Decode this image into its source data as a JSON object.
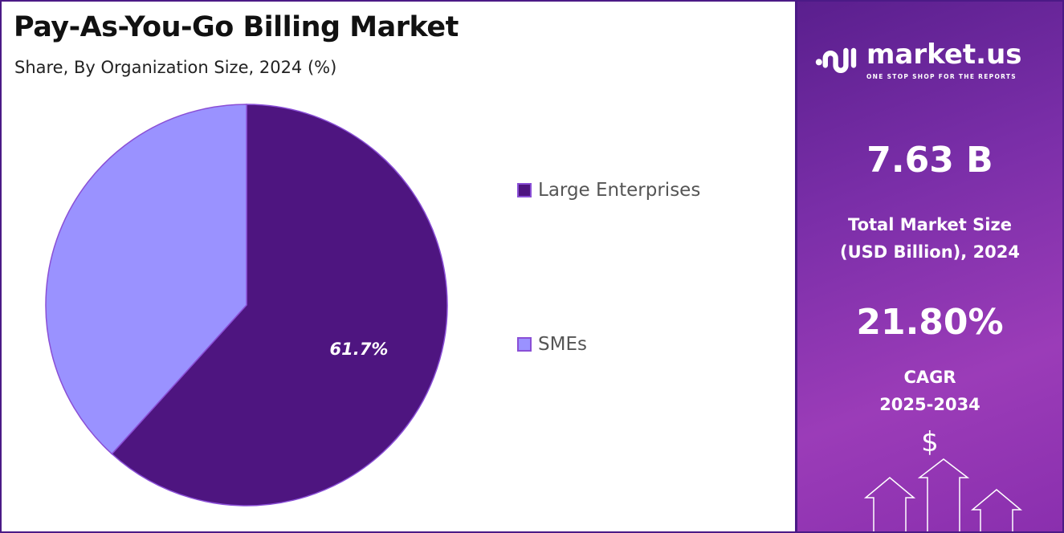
{
  "header": {
    "title": "Pay-As-You-Go Billing Market",
    "subtitle": "Share, By Organization Size, 2024 (%)"
  },
  "chart_data": {
    "type": "pie",
    "title": "Pay-As-You-Go Billing Market",
    "subtitle": "Share, By Organization Size, 2024 (%)",
    "categories": [
      "Large Enterprises",
      "SMEs"
    ],
    "values": [
      61.7,
      38.3
    ],
    "data_labels": [
      "61.7%",
      ""
    ],
    "colors": [
      "#4e1580",
      "#9a92ff"
    ],
    "legend_position": "right"
  },
  "sidebar": {
    "logo_name": "market.us",
    "logo_tagline": "ONE STOP SHOP FOR THE REPORTS",
    "market_size": "7.63 B",
    "market_size_label_1": "Total Market Size",
    "market_size_label_2": "(USD Billion), 2024",
    "cagr": "21.80%",
    "cagr_label_1": "CAGR",
    "cagr_label_2": "2025-2034",
    "dollar_symbol": "$"
  }
}
